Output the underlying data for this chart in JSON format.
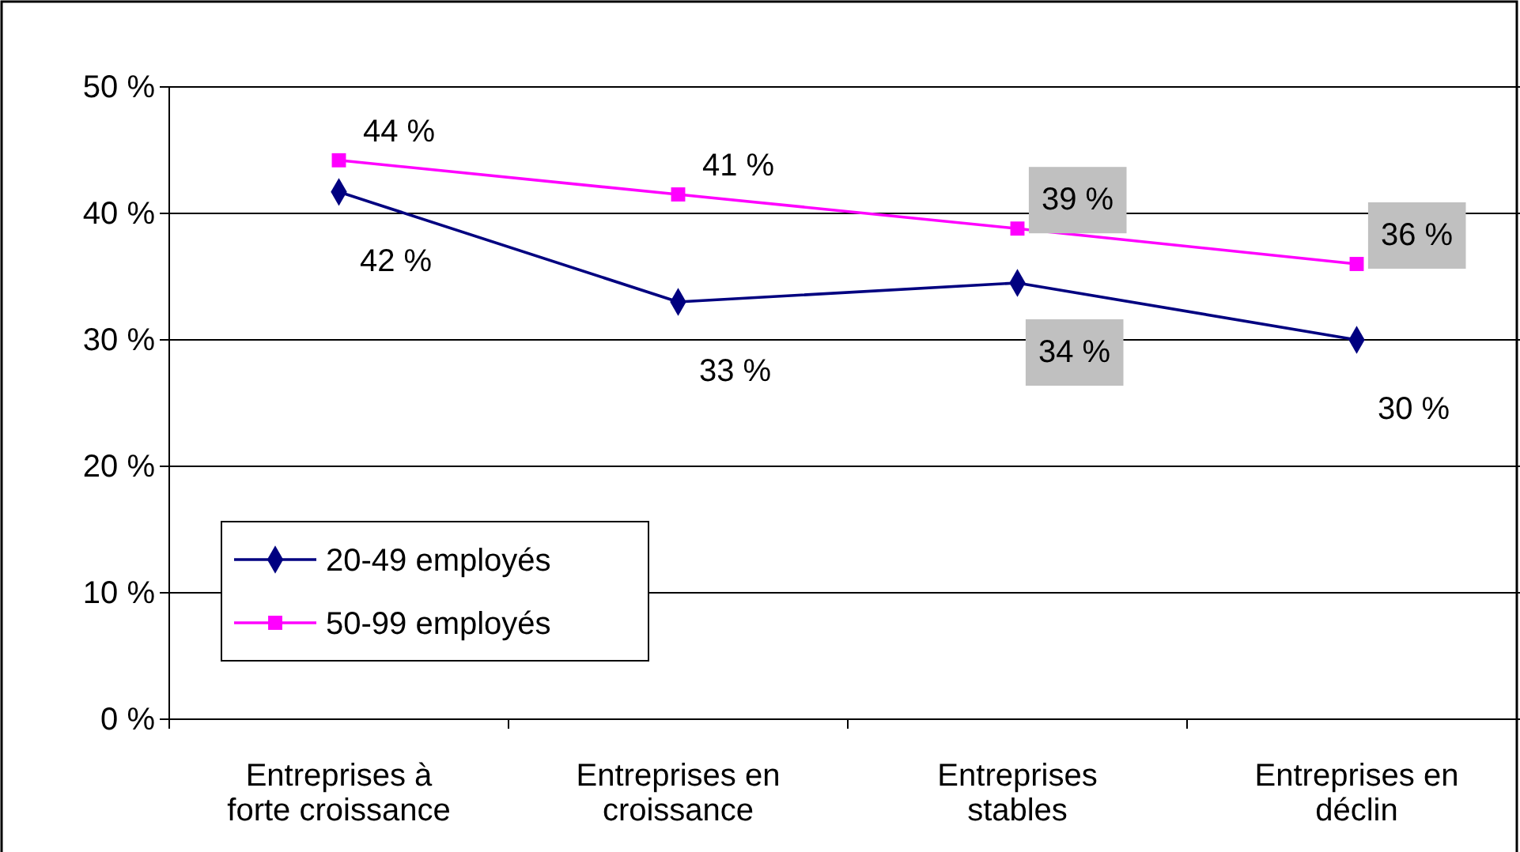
{
  "chart_data": {
    "type": "line",
    "categories": [
      "Entreprises à forte croissance",
      "Entreprises en croissance",
      "Entreprises stables",
      "Entreprises en déclin"
    ],
    "series": [
      {
        "name": "20-49 employés",
        "color": "#000080",
        "marker": "diamond",
        "values": [
          41.7,
          33,
          34.5,
          30
        ],
        "value_labels": [
          "42 %",
          "33 %",
          "34 %",
          "30 %"
        ]
      },
      {
        "name": "50-99 employés",
        "color": "#ff00ff",
        "marker": "square",
        "values": [
          44.2,
          41.5,
          38.8,
          36
        ],
        "value_labels": [
          "44 %",
          "41 %",
          "39 %",
          "36 %"
        ]
      }
    ],
    "ylim": [
      0,
      50
    ],
    "yticks": [
      {
        "value": 0,
        "label": "0 %"
      },
      {
        "value": 10,
        "label": "10 %"
      },
      {
        "value": 20,
        "label": "20 %"
      },
      {
        "value": 30,
        "label": "30 %"
      },
      {
        "value": 40,
        "label": "40 %"
      },
      {
        "value": 50,
        "label": "50 %"
      }
    ],
    "grid": "y",
    "legend": "bottom left"
  }
}
